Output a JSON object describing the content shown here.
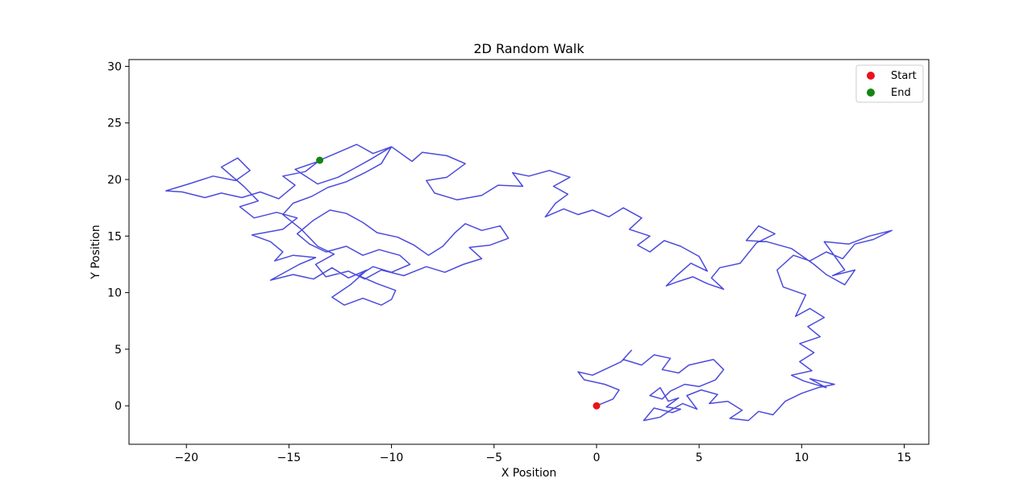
{
  "chart_data": {
    "type": "line",
    "title": "2D Random Walk",
    "xlabel": "X Position",
    "ylabel": "Y Position",
    "xlim": [
      -22.8,
      16.2
    ],
    "ylim": [
      -3.4,
      30.6
    ],
    "xticks": [
      -20,
      -15,
      -10,
      -5,
      0,
      5,
      10,
      15
    ],
    "yticks": [
      0,
      5,
      10,
      15,
      20,
      25,
      30
    ],
    "xtick_labels": [
      "−20",
      "−15",
      "−10",
      "−5",
      "0",
      "5",
      "10",
      "15"
    ],
    "ytick_labels": [
      "0",
      "5",
      "10",
      "15",
      "20",
      "25",
      "30"
    ],
    "grid": false,
    "legend_position": "top-right",
    "colors": {
      "path": "#4b4bdc",
      "start": "#e8141c",
      "end": "#138513"
    },
    "series": [
      {
        "name": "",
        "points": [
          [
            0.0,
            0.0
          ],
          [
            0.8,
            0.6
          ],
          [
            1.1,
            1.4
          ],
          [
            0.4,
            1.9
          ],
          [
            -0.6,
            2.3
          ],
          [
            -0.9,
            3.0
          ],
          [
            -0.2,
            2.7
          ],
          [
            0.5,
            3.3
          ],
          [
            1.2,
            3.9
          ],
          [
            1.7,
            4.9
          ],
          [
            1.3,
            4.1
          ],
          [
            2.2,
            3.6
          ],
          [
            2.8,
            4.5
          ],
          [
            3.6,
            4.2
          ],
          [
            3.2,
            3.2
          ],
          [
            4.0,
            2.9
          ],
          [
            4.5,
            3.6
          ],
          [
            5.7,
            4.1
          ],
          [
            6.2,
            3.2
          ],
          [
            5.8,
            2.3
          ],
          [
            5.0,
            1.7
          ],
          [
            4.3,
            1.9
          ],
          [
            3.6,
            1.3
          ],
          [
            3.2,
            0.6
          ],
          [
            2.6,
            0.9
          ],
          [
            3.1,
            1.6
          ],
          [
            3.5,
            0.4
          ],
          [
            4.0,
            0.7
          ],
          [
            3.4,
            -0.1
          ],
          [
            4.1,
            -0.3
          ],
          [
            3.7,
            -0.6
          ],
          [
            2.8,
            -0.2
          ],
          [
            2.3,
            -1.3
          ],
          [
            3.1,
            -1.0
          ],
          [
            3.6,
            -0.4
          ],
          [
            4.2,
            0.2
          ],
          [
            4.9,
            -0.3
          ],
          [
            4.4,
            0.9
          ],
          [
            5.1,
            1.4
          ],
          [
            5.9,
            1.0
          ],
          [
            5.5,
            0.2
          ],
          [
            6.4,
            0.4
          ],
          [
            7.1,
            -0.4
          ],
          [
            6.5,
            -1.1
          ],
          [
            7.4,
            -1.3
          ],
          [
            7.9,
            -0.5
          ],
          [
            8.6,
            -0.8
          ],
          [
            9.2,
            0.4
          ],
          [
            10.0,
            1.1
          ],
          [
            10.8,
            1.6
          ],
          [
            11.6,
            1.9
          ],
          [
            10.4,
            2.4
          ],
          [
            11.2,
            1.6
          ],
          [
            10.1,
            2.2
          ],
          [
            9.5,
            2.7
          ],
          [
            10.5,
            3.1
          ],
          [
            9.9,
            3.9
          ],
          [
            10.6,
            4.7
          ],
          [
            9.9,
            5.5
          ],
          [
            10.9,
            6.1
          ],
          [
            10.3,
            7.0
          ],
          [
            11.1,
            7.8
          ],
          [
            10.4,
            8.6
          ],
          [
            9.7,
            7.9
          ],
          [
            10.2,
            9.8
          ],
          [
            9.1,
            10.5
          ],
          [
            8.8,
            12.0
          ],
          [
            9.6,
            13.3
          ],
          [
            10.4,
            12.8
          ],
          [
            11.2,
            13.6
          ],
          [
            12.0,
            13.0
          ],
          [
            12.6,
            14.3
          ],
          [
            13.5,
            14.7
          ],
          [
            14.4,
            15.5
          ],
          [
            13.3,
            15.0
          ],
          [
            12.3,
            14.3
          ],
          [
            11.1,
            14.5
          ],
          [
            12.1,
            12.0
          ],
          [
            11.5,
            11.5
          ],
          [
            12.6,
            12.0
          ],
          [
            12.1,
            10.7
          ],
          [
            11.2,
            11.6
          ],
          [
            10.6,
            12.5
          ],
          [
            9.5,
            13.9
          ],
          [
            8.3,
            14.5
          ],
          [
            7.3,
            14.6
          ],
          [
            7.9,
            15.9
          ],
          [
            8.7,
            15.2
          ],
          [
            7.8,
            14.4
          ],
          [
            7.0,
            12.6
          ],
          [
            6.0,
            12.2
          ],
          [
            5.6,
            11.3
          ],
          [
            6.2,
            10.3
          ],
          [
            5.4,
            10.8
          ],
          [
            4.7,
            11.4
          ],
          [
            4.0,
            11.0
          ],
          [
            3.4,
            10.6
          ],
          [
            3.9,
            11.5
          ],
          [
            4.6,
            12.6
          ],
          [
            5.4,
            11.9
          ],
          [
            5.0,
            13.2
          ],
          [
            4.1,
            14.1
          ],
          [
            3.3,
            14.6
          ],
          [
            2.6,
            13.6
          ],
          [
            2.0,
            14.2
          ],
          [
            2.6,
            15.0
          ],
          [
            1.6,
            15.6
          ],
          [
            2.2,
            16.6
          ],
          [
            1.3,
            17.5
          ],
          [
            0.6,
            16.7
          ],
          [
            -0.2,
            17.3
          ],
          [
            -0.9,
            16.9
          ],
          [
            -1.6,
            17.4
          ],
          [
            -2.5,
            16.7
          ],
          [
            -2.0,
            17.9
          ],
          [
            -1.4,
            18.7
          ],
          [
            -2.1,
            19.4
          ],
          [
            -1.3,
            20.2
          ],
          [
            -2.3,
            20.8
          ],
          [
            -3.3,
            20.3
          ],
          [
            -4.1,
            20.6
          ],
          [
            -3.6,
            19.4
          ],
          [
            -4.8,
            19.5
          ],
          [
            -5.6,
            18.6
          ],
          [
            -6.8,
            18.2
          ],
          [
            -7.9,
            18.8
          ],
          [
            -8.3,
            19.9
          ],
          [
            -7.3,
            20.2
          ],
          [
            -6.4,
            21.4
          ],
          [
            -7.3,
            22.1
          ],
          [
            -8.5,
            22.4
          ],
          [
            -9.0,
            21.6
          ],
          [
            -10.0,
            22.9
          ],
          [
            -10.9,
            22.3
          ],
          [
            -11.7,
            23.1
          ],
          [
            -12.6,
            22.4
          ],
          [
            -13.5,
            21.7
          ],
          [
            -14.2,
            20.7
          ],
          [
            -15.3,
            20.3
          ],
          [
            -14.7,
            19.5
          ],
          [
            -15.5,
            18.3
          ],
          [
            -16.4,
            18.9
          ],
          [
            -17.3,
            18.4
          ],
          [
            -18.3,
            18.8
          ],
          [
            -19.1,
            18.4
          ],
          [
            -20.2,
            18.9
          ],
          [
            -21.0,
            19.0
          ],
          [
            -19.9,
            19.6
          ],
          [
            -18.7,
            20.3
          ],
          [
            -17.6,
            19.9
          ],
          [
            -16.9,
            20.8
          ],
          [
            -17.5,
            21.9
          ],
          [
            -18.3,
            21.1
          ],
          [
            -17.2,
            19.4
          ],
          [
            -16.5,
            18.1
          ],
          [
            -17.4,
            17.6
          ],
          [
            -16.7,
            16.6
          ],
          [
            -15.6,
            17.1
          ],
          [
            -14.6,
            16.6
          ],
          [
            -15.3,
            15.6
          ],
          [
            -16.8,
            15.1
          ],
          [
            -15.9,
            14.5
          ],
          [
            -15.3,
            13.6
          ],
          [
            -15.7,
            12.8
          ],
          [
            -14.8,
            13.3
          ],
          [
            -13.7,
            13.1
          ],
          [
            -14.5,
            12.5
          ],
          [
            -15.9,
            11.1
          ],
          [
            -14.8,
            11.6
          ],
          [
            -13.8,
            11.2
          ],
          [
            -12.9,
            12.2
          ],
          [
            -12.1,
            11.3
          ],
          [
            -11.2,
            12.0
          ],
          [
            -12.0,
            10.7
          ],
          [
            -12.9,
            9.6
          ],
          [
            -12.3,
            8.9
          ],
          [
            -11.4,
            9.5
          ],
          [
            -10.5,
            8.9
          ],
          [
            -10.0,
            9.4
          ],
          [
            -9.8,
            10.2
          ],
          [
            -10.7,
            10.8
          ],
          [
            -11.6,
            11.5
          ],
          [
            -10.9,
            12.3
          ],
          [
            -10.0,
            11.8
          ],
          [
            -9.1,
            12.5
          ],
          [
            -9.6,
            13.3
          ],
          [
            -10.6,
            13.8
          ],
          [
            -11.4,
            13.3
          ],
          [
            -12.2,
            14.1
          ],
          [
            -13.2,
            13.6
          ],
          [
            -14.0,
            14.3
          ],
          [
            -14.6,
            15.2
          ],
          [
            -13.8,
            16.4
          ],
          [
            -13.0,
            17.3
          ],
          [
            -12.2,
            17.0
          ],
          [
            -11.4,
            16.2
          ],
          [
            -10.7,
            15.3
          ],
          [
            -9.7,
            14.9
          ],
          [
            -8.9,
            14.2
          ],
          [
            -8.2,
            13.3
          ],
          [
            -7.5,
            14.1
          ],
          [
            -6.9,
            15.3
          ],
          [
            -6.4,
            16.1
          ],
          [
            -5.6,
            15.5
          ],
          [
            -4.7,
            15.9
          ],
          [
            -4.3,
            14.8
          ],
          [
            -5.2,
            14.2
          ],
          [
            -6.2,
            14.0
          ],
          [
            -5.6,
            13.0
          ],
          [
            -6.5,
            12.5
          ],
          [
            -7.4,
            11.8
          ],
          [
            -8.3,
            12.3
          ],
          [
            -9.4,
            11.5
          ],
          [
            -10.5,
            12.0
          ],
          [
            -11.3,
            11.2
          ],
          [
            -12.1,
            11.9
          ],
          [
            -13.2,
            11.4
          ],
          [
            -13.7,
            12.5
          ],
          [
            -12.8,
            13.4
          ],
          [
            -13.6,
            14.1
          ],
          [
            -14.4,
            15.6
          ],
          [
            -15.3,
            16.9
          ],
          [
            -14.8,
            17.9
          ],
          [
            -13.9,
            18.5
          ],
          [
            -13.1,
            19.3
          ],
          [
            -12.2,
            19.8
          ],
          [
            -11.3,
            20.6
          ],
          [
            -10.5,
            21.4
          ],
          [
            -10.0,
            22.9
          ],
          [
            -11.0,
            21.8
          ],
          [
            -11.8,
            21.0
          ],
          [
            -12.6,
            20.2
          ],
          [
            -13.6,
            19.6
          ],
          [
            -14.7,
            20.9
          ],
          [
            -13.4,
            21.7
          ],
          [
            -13.5,
            21.7
          ]
        ]
      }
    ],
    "markers": [
      {
        "label": "Start",
        "x": 0.0,
        "y": 0.0
      },
      {
        "label": "End",
        "x": -13.5,
        "y": 21.7
      }
    ]
  }
}
